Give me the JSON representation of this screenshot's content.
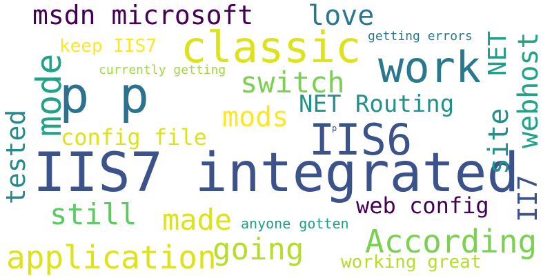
{
  "background": "#ffffff",
  "words": [
    {
      "text": "IIS7 integrated",
      "color": "#3b528b",
      "orientation": "horizontal"
    },
    {
      "text": "p p",
      "color": "#2c728e",
      "orientation": "horizontal"
    },
    {
      "text": "classic",
      "color": "#dde318",
      "orientation": "horizontal"
    },
    {
      "text": "work",
      "color": "#2a788e",
      "orientation": "horizontal"
    },
    {
      "text": "IIS6",
      "color": "#3b528b",
      "orientation": "horizontal"
    },
    {
      "text": "mode",
      "color": "#20a386",
      "orientation": "vertical"
    },
    {
      "text": "msdn microsoft",
      "color": "#440154",
      "orientation": "horizontal"
    },
    {
      "text": "love",
      "color": "#2a788e",
      "orientation": "horizontal"
    },
    {
      "text": "According",
      "color": "#7ad151",
      "orientation": "horizontal"
    },
    {
      "text": "application",
      "color": "#dde318",
      "orientation": "horizontal"
    },
    {
      "text": "going",
      "color": "#b5de2b",
      "orientation": "horizontal"
    },
    {
      "text": "made",
      "color": "#dde318",
      "orientation": "horizontal"
    },
    {
      "text": "still",
      "color": "#5ec962",
      "orientation": "horizontal"
    },
    {
      "text": "switch",
      "color": "#7ad151",
      "orientation": "horizontal"
    },
    {
      "text": "tested",
      "color": "#238a8d",
      "orientation": "vertical"
    },
    {
      "text": "mods",
      "color": "#fde725",
      "orientation": "horizontal"
    },
    {
      "text": "NET Routing",
      "color": "#21918c",
      "orientation": "horizontal"
    },
    {
      "text": "web config",
      "color": "#440154",
      "orientation": "horizontal"
    },
    {
      "text": "config file",
      "color": "#dde318",
      "orientation": "horizontal"
    },
    {
      "text": "site",
      "color": "#21918c",
      "orientation": "vertical"
    },
    {
      "text": "webhost",
      "color": "#20a386",
      "orientation": "vertical"
    },
    {
      "text": "II7",
      "color": "#3b528b",
      "orientation": "vertical"
    },
    {
      "text": "NET",
      "color": "#1f9e89",
      "orientation": "vertical"
    },
    {
      "text": "working great",
      "color": "#b5de2b",
      "orientation": "horizontal"
    },
    {
      "text": "keep IIS7",
      "color": "#fde725",
      "orientation": "horizontal"
    },
    {
      "text": "anyone gotten",
      "color": "#1f9e89",
      "orientation": "horizontal"
    },
    {
      "text": "getting errors",
      "color": "#2a788e",
      "orientation": "horizontal"
    },
    {
      "text": "currently getting",
      "color": "#a0da39",
      "orientation": "horizontal"
    },
    {
      "text": "p",
      "color": "#3b528b",
      "orientation": "horizontal"
    }
  ]
}
